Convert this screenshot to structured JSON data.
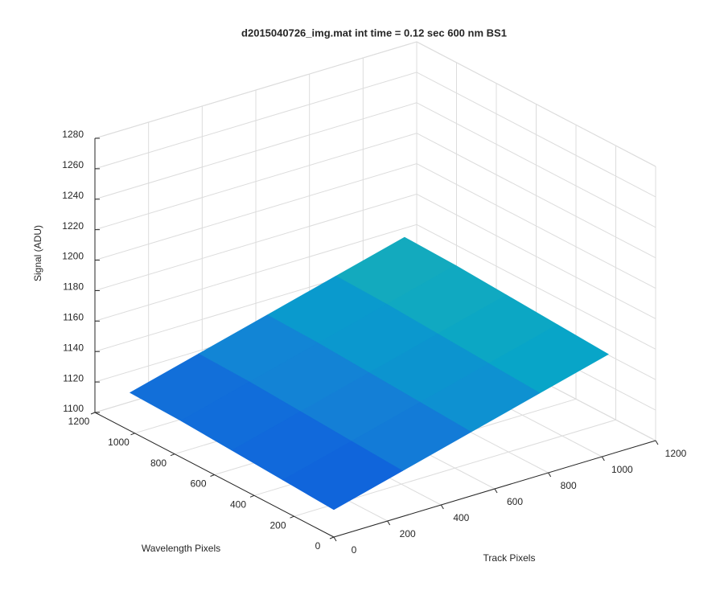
{
  "chart_data": {
    "type": "surface",
    "title": "d2015040726_img.mat int time = 0.12 sec  600 nm BS1",
    "xlabel": "Track Pixels",
    "ylabel": "Wavelength Pixels",
    "zlabel": "Signal (ADU)",
    "x": [
      0,
      256,
      512,
      768,
      1024
    ],
    "y": [
      0,
      256,
      512,
      768,
      1024
    ],
    "z": [
      [
        1118,
        1130,
        1142,
        1154,
        1166
      ],
      [
        1120,
        1132,
        1144,
        1156,
        1168
      ],
      [
        1122,
        1134,
        1146,
        1158,
        1170
      ],
      [
        1124,
        1136,
        1148,
        1160,
        1172
      ],
      [
        1125,
        1137,
        1149,
        1161,
        1173
      ]
    ],
    "xlim": [
      0,
      1200
    ],
    "xticks": [
      0,
      200,
      400,
      600,
      800,
      1000,
      1200
    ],
    "ylim": [
      0,
      1200
    ],
    "yticks": [
      0,
      200,
      400,
      600,
      800,
      1000,
      1200
    ],
    "zlim": [
      1100,
      1280
    ],
    "zticks": [
      1100,
      1120,
      1140,
      1160,
      1180,
      1200,
      1220,
      1240,
      1260,
      1280
    ],
    "grid": true,
    "clim": [
      1100,
      1180
    ],
    "colormap": [
      "#352a87",
      "#0f5cdd",
      "#1481d6",
      "#06a4ca",
      "#2eb7a4"
    ]
  }
}
